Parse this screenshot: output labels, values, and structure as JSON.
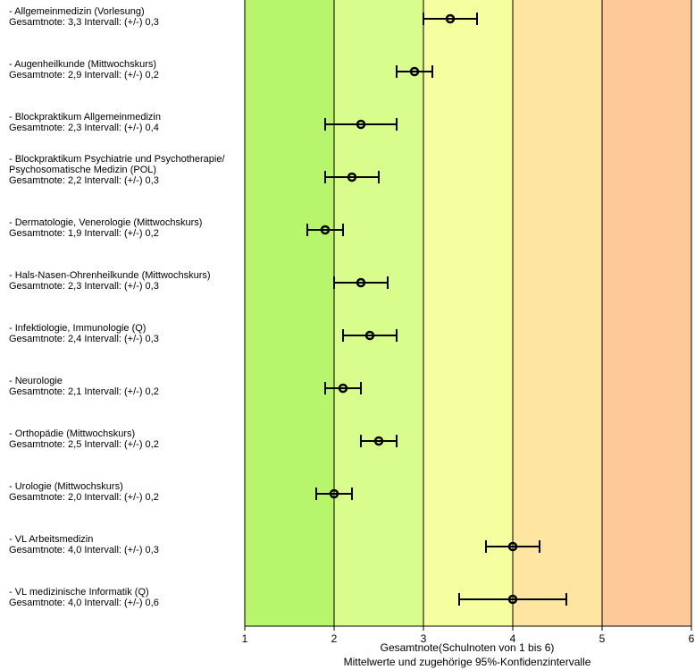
{
  "chart_data": {
    "type": "scatter",
    "xlabel": "Gesamtnote(Schulnoten von 1 bis 6)",
    "xlabel2": "Mittelwerte und zugehörige 95%-Konfidenzintervalle",
    "xlim": [
      1,
      6
    ],
    "xticks": [
      "1",
      "2",
      "3",
      "4",
      "5",
      "6"
    ],
    "bands": [
      {
        "from": 1,
        "to": 2,
        "color": "#b7f56c"
      },
      {
        "from": 2,
        "to": 3,
        "color": "#d9fd8c"
      },
      {
        "from": 3,
        "to": 4,
        "color": "#f5ffa0"
      },
      {
        "from": 4,
        "to": 5,
        "color": "#ffe6a0"
      },
      {
        "from": 5,
        "to": 6,
        "color": "#ffc899"
      }
    ],
    "items": [
      {
        "label_lines": [
          "- Allgemeinmedizin (Vorlesung)",
          "Gesamtnote: 3,3 Intervall: (+/-) 0,3"
        ],
        "mean": 3.3,
        "ci": 0.3
      },
      {
        "label_lines": [
          "- Augenheilkunde (Mittwochskurs)",
          "Gesamtnote: 2,9 Intervall: (+/-) 0,2"
        ],
        "mean": 2.9,
        "ci": 0.2
      },
      {
        "label_lines": [
          "- Blockpraktikum Allgemeinmedizin",
          "Gesamtnote: 2,3 Intervall: (+/-) 0,4"
        ],
        "mean": 2.3,
        "ci": 0.4
      },
      {
        "label_lines": [
          "- Blockpraktikum Psychiatrie und Psychotherapie/",
          "Psychosomatische Medizin (POL)",
          "Gesamtnote: 2,2 Intervall: (+/-) 0,3"
        ],
        "mean": 2.2,
        "ci": 0.3
      },
      {
        "label_lines": [
          "- Dermatologie, Venerologie (Mittwochskurs)",
          "Gesamtnote: 1,9 Intervall: (+/-) 0,2"
        ],
        "mean": 1.9,
        "ci": 0.2
      },
      {
        "label_lines": [
          "- Hals-Nasen-Ohrenheilkunde (Mittwochskurs)",
          "Gesamtnote: 2,3 Intervall: (+/-) 0,3"
        ],
        "mean": 2.3,
        "ci": 0.3
      },
      {
        "label_lines": [
          "- Infektiologie, Immunologie (Q)",
          "Gesamtnote: 2,4 Intervall: (+/-) 0,3"
        ],
        "mean": 2.4,
        "ci": 0.3
      },
      {
        "label_lines": [
          "- Neurologie",
          "Gesamtnote: 2,1 Intervall: (+/-) 0,2"
        ],
        "mean": 2.1,
        "ci": 0.2
      },
      {
        "label_lines": [
          "- Orthopädie (Mittwochskurs)",
          "Gesamtnote: 2,5 Intervall: (+/-) 0,2"
        ],
        "mean": 2.5,
        "ci": 0.2
      },
      {
        "label_lines": [
          "- Urologie (Mittwochskurs)",
          "Gesamtnote: 2,0 Intervall: (+/-) 0,2"
        ],
        "mean": 2.0,
        "ci": 0.2
      },
      {
        "label_lines": [
          "- VL Arbeitsmedizin",
          "Gesamtnote: 4,0 Intervall: (+/-) 0,3"
        ],
        "mean": 4.0,
        "ci": 0.3
      },
      {
        "label_lines": [
          "- VL medizinische Informatik (Q)",
          "Gesamtnote: 4,0 Intervall: (+/-) 0,6"
        ],
        "mean": 4.0,
        "ci": 0.6
      }
    ]
  }
}
